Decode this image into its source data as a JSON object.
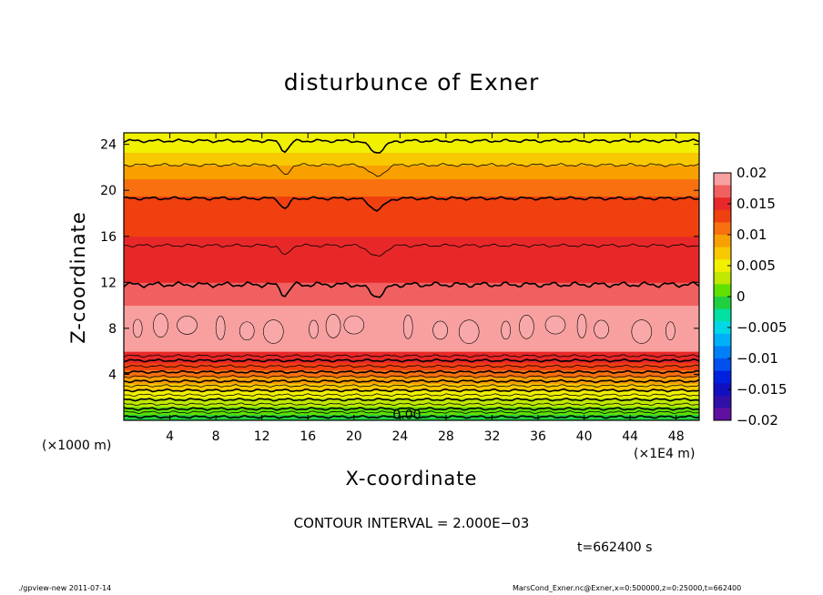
{
  "chart_data": {
    "type": "heatmap",
    "title": "disturbunce of Exner",
    "xlabel": "X-coordinate",
    "ylabel": "Z-coordinate",
    "x_unit_left": "(×1000 m)",
    "x_unit_right": "(×1E4 m)",
    "xlim": [
      0,
      50
    ],
    "ylim": [
      0,
      25
    ],
    "x_ticks": [
      4,
      8,
      12,
      16,
      20,
      24,
      28,
      32,
      36,
      40,
      44,
      48
    ],
    "y_ticks": [
      4,
      8,
      12,
      16,
      20,
      24
    ],
    "colorbar": {
      "ticks": [
        0.02,
        0.015,
        0.01,
        0.005,
        0,
        -0.005,
        -0.01,
        -0.015,
        -0.02
      ],
      "tick_labels": [
        "0.02",
        "0.015",
        "0.01",
        "0.005",
        "0",
        "−0.005",
        "−0.01",
        "−0.015",
        "−0.02"
      ],
      "range": [
        -0.02,
        0.02
      ],
      "levels": [
        {
          "value": 0.019,
          "color": "#f8a0a0"
        },
        {
          "value": 0.017,
          "color": "#f06060"
        },
        {
          "value": 0.015,
          "color": "#e82828"
        },
        {
          "value": 0.013,
          "color": "#f04010"
        },
        {
          "value": 0.011,
          "color": "#f87010"
        },
        {
          "value": 0.009,
          "color": "#f8a000"
        },
        {
          "value": 0.007,
          "color": "#f8c800"
        },
        {
          "value": 0.005,
          "color": "#f0f000"
        },
        {
          "value": 0.003,
          "color": "#c0e800"
        },
        {
          "value": 0.001,
          "color": "#60e000"
        },
        {
          "value": -0.001,
          "color": "#20d040"
        },
        {
          "value": -0.003,
          "color": "#00e0a0"
        },
        {
          "value": -0.005,
          "color": "#00d8e8"
        },
        {
          "value": -0.007,
          "color": "#00b0f8"
        },
        {
          "value": -0.009,
          "color": "#0080f8"
        },
        {
          "value": -0.011,
          "color": "#0050f0"
        },
        {
          "value": -0.013,
          "color": "#0020e0"
        },
        {
          "value": -0.015,
          "color": "#1010c0"
        },
        {
          "value": -0.017,
          "color": "#3010a8"
        },
        {
          "value": -0.019,
          "color": "#6010a0"
        }
      ]
    },
    "bands": [
      {
        "z0": 0.0,
        "z1": 0.5,
        "value": -0.001
      },
      {
        "z0": 0.5,
        "z1": 1.2,
        "value": 0.001
      },
      {
        "z0": 1.2,
        "z1": 2.0,
        "value": 0.003
      },
      {
        "z0": 2.0,
        "z1": 2.6,
        "value": 0.005
      },
      {
        "z0": 2.6,
        "z1": 3.2,
        "value": 0.007
      },
      {
        "z0": 3.2,
        "z1": 3.8,
        "value": 0.009
      },
      {
        "z0": 3.8,
        "z1": 4.4,
        "value": 0.011
      },
      {
        "z0": 4.4,
        "z1": 5.0,
        "value": 0.013
      },
      {
        "z0": 5.0,
        "z1": 6.0,
        "value": 0.015
      },
      {
        "z0": 6.0,
        "z1": 10.0,
        "value": 0.019
      },
      {
        "z0": 10.0,
        "z1": 12.0,
        "value": 0.017
      },
      {
        "z0": 12.0,
        "z1": 16.0,
        "value": 0.015
      },
      {
        "z0": 16.0,
        "z1": 19.5,
        "value": 0.013
      },
      {
        "z0": 19.5,
        "z1": 21.0,
        "value": 0.011
      },
      {
        "z0": 21.0,
        "z1": 22.2,
        "value": 0.009
      },
      {
        "z0": 22.2,
        "z1": 23.3,
        "value": 0.007
      },
      {
        "z0": 23.3,
        "z1": 25.0,
        "value": 0.005
      }
    ],
    "contour_levels_z": [
      0.3,
      0.7,
      1.0,
      1.4,
      1.8,
      2.2,
      2.6,
      3.0,
      3.4,
      3.8,
      4.2,
      4.7,
      5.2,
      5.6,
      11.8,
      15.2,
      19.3,
      22.2,
      24.3
    ],
    "contour_label": "0.00",
    "contour_label_x": 24.6,
    "contour_label_z": 0.1
  },
  "contour_interval": "CONTOUR INTERVAL = 2.000E−03",
  "time_label": "t=662400 s",
  "footer_left": "./gpview-new  2011-07-14",
  "footer_right": "MarsCond_Exner.nc@Exner,x=0:500000,z=0:25000,t=662400"
}
